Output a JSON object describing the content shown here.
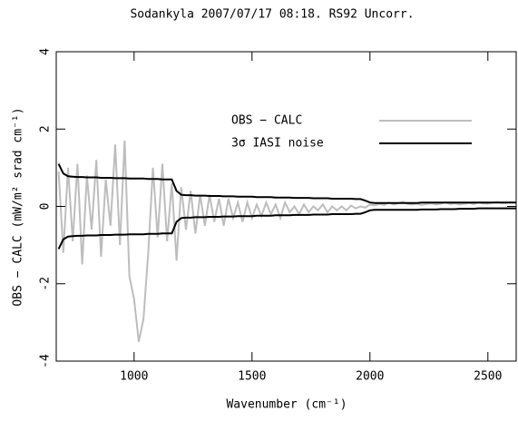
{
  "chart_data": {
    "type": "line",
    "title": "Sodankyla 2007/07/17 08:18. RS92 Uncorr.",
    "x_label": "Wavenumber (cm⁻¹)",
    "y_label": "OBS − CALC (mW/m² srad cm⁻¹)",
    "x": [
      680,
      700,
      720,
      740,
      760,
      780,
      800,
      820,
      840,
      860,
      880,
      900,
      920,
      940,
      960,
      980,
      1000,
      1020,
      1040,
      1060,
      1080,
      1100,
      1120,
      1140,
      1160,
      1180,
      1200,
      1220,
      1240,
      1260,
      1280,
      1300,
      1320,
      1340,
      1360,
      1380,
      1400,
      1420,
      1440,
      1460,
      1480,
      1500,
      1520,
      1540,
      1560,
      1580,
      1600,
      1620,
      1640,
      1660,
      1680,
      1700,
      1720,
      1740,
      1760,
      1780,
      1800,
      1820,
      1840,
      1860,
      1880,
      1900,
      1920,
      1940,
      1960,
      1980,
      2000,
      2020,
      2040,
      2060,
      2080,
      2100,
      2120,
      2140,
      2160,
      2180,
      2200,
      2220,
      2240,
      2260,
      2280,
      2300,
      2320,
      2340,
      2360,
      2380,
      2400,
      2420,
      2440,
      2460,
      2480,
      2500,
      2520,
      2540,
      2560,
      2580,
      2600,
      2620
    ],
    "series": [
      {
        "name": "OBS − CALC",
        "color": "#bdbdbd",
        "width": 2,
        "values": [
          0.9,
          -1.2,
          1.0,
          -0.9,
          1.1,
          -1.5,
          0.8,
          -0.6,
          1.2,
          -1.3,
          0.7,
          -0.5,
          1.6,
          -1.0,
          1.7,
          -1.8,
          -2.4,
          -3.5,
          -2.9,
          -1.2,
          1.0,
          -0.8,
          1.1,
          -0.9,
          0.6,
          -1.4,
          0.5,
          -0.6,
          0.4,
          -0.7,
          0.3,
          -0.5,
          0.3,
          -0.4,
          0.2,
          -0.5,
          0.2,
          -0.3,
          0.1,
          -0.4,
          0.1,
          -0.3,
          0.05,
          -0.25,
          0.1,
          -0.2,
          0.05,
          -0.3,
          0.1,
          -0.15,
          0.0,
          -0.2,
          0.05,
          -0.15,
          0.0,
          -0.1,
          0.05,
          -0.15,
          0.0,
          -0.1,
          0.0,
          -0.1,
          0.02,
          -0.05,
          0.0,
          -0.03,
          0.05,
          0.03,
          0.06,
          0.04,
          0.1,
          0.05,
          0.08,
          0.12,
          0.06,
          0.05,
          0.07,
          0.04,
          0.06,
          0.08,
          0.05,
          0.07,
          0.1,
          0.06,
          0.08,
          0.05,
          0.07,
          0.09,
          0.06,
          0.1,
          0.08,
          0.07,
          0.1,
          0.12,
          0.09,
          0.1,
          0.11,
          0.1
        ]
      },
      {
        "name": "3σ IASI noise",
        "color": "#000000",
        "width": 2,
        "values": [
          1.1,
          0.85,
          0.78,
          0.77,
          0.76,
          0.76,
          0.75,
          0.75,
          0.75,
          0.74,
          0.74,
          0.74,
          0.73,
          0.73,
          0.73,
          0.72,
          0.72,
          0.72,
          0.72,
          0.71,
          0.71,
          0.71,
          0.7,
          0.7,
          0.7,
          0.4,
          0.3,
          0.29,
          0.29,
          0.28,
          0.28,
          0.28,
          0.27,
          0.27,
          0.27,
          0.26,
          0.26,
          0.26,
          0.25,
          0.25,
          0.25,
          0.25,
          0.24,
          0.24,
          0.24,
          0.24,
          0.23,
          0.23,
          0.23,
          0.23,
          0.22,
          0.22,
          0.22,
          0.22,
          0.21,
          0.21,
          0.21,
          0.21,
          0.2,
          0.2,
          0.2,
          0.2,
          0.2,
          0.19,
          0.19,
          0.15,
          0.1,
          0.09,
          0.09,
          0.09,
          0.09,
          0.09,
          0.09,
          0.09,
          0.09,
          0.09,
          0.09,
          0.1,
          0.1,
          0.1,
          0.1,
          0.1,
          0.1,
          0.1,
          0.1,
          0.1,
          0.1,
          0.1,
          0.1,
          0.1,
          0.1,
          0.1,
          0.1,
          0.1,
          0.1,
          0.1,
          0.1,
          0.1
        ]
      },
      {
        "color": "#000000",
        "width": 2,
        "values": [
          -1.1,
          -0.85,
          -0.78,
          -0.77,
          -0.76,
          -0.76,
          -0.75,
          -0.75,
          -0.75,
          -0.74,
          -0.74,
          -0.74,
          -0.73,
          -0.73,
          -0.73,
          -0.72,
          -0.72,
          -0.72,
          -0.72,
          -0.71,
          -0.71,
          -0.71,
          -0.7,
          -0.7,
          -0.7,
          -0.4,
          -0.3,
          -0.29,
          -0.29,
          -0.28,
          -0.28,
          -0.28,
          -0.27,
          -0.27,
          -0.27,
          -0.26,
          -0.26,
          -0.26,
          -0.25,
          -0.25,
          -0.25,
          -0.25,
          -0.24,
          -0.24,
          -0.24,
          -0.24,
          -0.23,
          -0.23,
          -0.23,
          -0.23,
          -0.22,
          -0.22,
          -0.22,
          -0.22,
          -0.21,
          -0.21,
          -0.21,
          -0.21,
          -0.2,
          -0.2,
          -0.2,
          -0.2,
          -0.2,
          -0.19,
          -0.19,
          -0.15,
          -0.1,
          -0.09,
          -0.09,
          -0.09,
          -0.09,
          -0.09,
          -0.09,
          -0.09,
          -0.09,
          -0.09,
          -0.09,
          -0.08,
          -0.08,
          -0.08,
          -0.08,
          -0.07,
          -0.07,
          -0.07,
          -0.07,
          -0.06,
          -0.06,
          -0.06,
          -0.06,
          -0.05,
          -0.05,
          -0.05,
          -0.05,
          -0.05,
          -0.05,
          -0.05,
          -0.05,
          -0.05
        ]
      }
    ],
    "xlim": [
      670,
      2620
    ],
    "xticks": [
      1000,
      1500,
      2000,
      2500
    ],
    "ylim": [
      -4,
      4
    ],
    "yticks": [
      -4,
      -2,
      0,
      2,
      4
    ]
  }
}
